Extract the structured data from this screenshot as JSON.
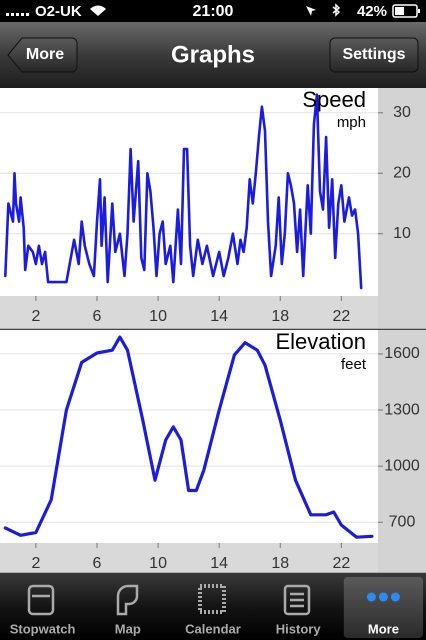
{
  "status_bar": {
    "carrier": "O2-UK",
    "time": "21:00",
    "battery": "42%"
  },
  "nav_bar": {
    "back": "More",
    "title": "Graphs",
    "action": "Settings"
  },
  "chart_data": [
    {
      "type": "line",
      "title": "Speed",
      "y_label": "mph",
      "x": [
        0,
        0.2,
        0.5,
        0.6,
        0.7,
        0.9,
        1.0,
        1.2,
        1.3,
        1.5,
        1.8,
        2.0,
        2.2,
        2.4,
        2.6,
        2.8,
        3.0,
        3.5,
        4.0,
        4.5,
        4.8,
        5.0,
        5.2,
        5.5,
        5.8,
        6.0,
        6.2,
        6.3,
        6.5,
        6.7,
        7.0,
        7.2,
        7.5,
        7.8,
        8.0,
        8.2,
        8.4,
        8.7,
        8.9,
        9.1,
        9.3,
        9.5,
        9.7,
        9.9,
        10.1,
        10.3,
        10.5,
        10.8,
        11.0,
        11.3,
        11.5,
        11.7,
        11.9,
        12.1,
        12.3,
        12.6,
        12.9,
        13.2,
        13.6,
        14.0,
        14.3,
        14.6,
        14.9,
        15.2,
        15.4,
        15.6,
        15.8,
        16.0,
        16.2,
        16.4,
        16.6,
        16.8,
        17.0,
        17.2,
        17.4,
        17.7,
        17.9,
        18.1,
        18.3,
        18.5,
        18.7,
        18.9,
        19.1,
        19.3,
        19.5,
        19.8,
        20.0,
        20.2,
        20.4,
        20.6,
        20.8,
        21.0,
        21.2,
        21.4,
        21.6,
        21.8,
        22.0,
        22.2,
        22.5,
        22.7,
        22.9,
        23.1,
        23.3
      ],
      "series": [
        {
          "color": "#1c1ce0",
          "values": [
            3,
            15,
            12,
            20,
            15,
            12,
            16,
            11,
            4,
            8,
            7,
            5,
            8,
            5,
            7,
            2,
            2,
            2,
            2,
            9,
            5,
            12,
            8,
            5,
            3,
            12,
            19,
            8,
            16,
            2,
            15,
            7,
            10,
            3,
            10,
            24,
            12,
            22,
            6,
            4,
            20,
            17,
            11,
            3,
            10,
            12,
            5,
            8,
            2,
            14,
            5,
            24,
            24,
            8,
            3,
            9,
            5,
            8,
            3,
            7,
            3,
            6,
            10,
            5,
            9,
            7,
            11,
            19,
            15,
            20,
            26,
            31,
            27,
            12,
            3,
            8,
            16,
            5,
            10,
            20,
            18,
            15,
            7,
            14,
            3,
            18,
            10,
            28,
            33,
            17,
            14,
            26,
            11,
            19,
            6,
            15,
            18,
            12,
            16,
            13,
            14,
            10,
            1
          ]
        }
      ],
      "xlim": [
        -0.35,
        24.4
      ],
      "ylim": [
        -0.3,
        34.1
      ],
      "xticks": [
        2,
        6,
        10,
        14,
        18,
        22
      ],
      "yticks": [
        10,
        20,
        30
      ],
      "grid": true
    },
    {
      "type": "line",
      "title": "Elevation",
      "y_label": "feet",
      "x": [
        0,
        1,
        2,
        3,
        4,
        5,
        6,
        7,
        7.5,
        8,
        9,
        9.8,
        10.5,
        11,
        11.5,
        12,
        12.5,
        13,
        14,
        15,
        15.7,
        16.5,
        17,
        18,
        19,
        20,
        21,
        21.5,
        22,
        23,
        24
      ],
      "series": [
        {
          "color": "#1c1ce0",
          "values": [
            670,
            630,
            645,
            820,
            1300,
            1555,
            1605,
            1620,
            1690,
            1620,
            1245,
            925,
            1140,
            1210,
            1140,
            870,
            870,
            980,
            1300,
            1595,
            1660,
            1620,
            1540,
            1245,
            925,
            740,
            740,
            755,
            685,
            620,
            625
          ]
        }
      ],
      "xlim": [
        -0.35,
        24.4
      ],
      "ylim": [
        589,
        1728
      ],
      "xticks": [
        2,
        6,
        10,
        14,
        18,
        22
      ],
      "yticks": [
        700,
        1000,
        1300,
        1600
      ],
      "grid": true
    }
  ],
  "tab_bar": {
    "tabs": [
      "Stopwatch",
      "Map",
      "Calendar",
      "History",
      "More"
    ],
    "selected": 4
  }
}
